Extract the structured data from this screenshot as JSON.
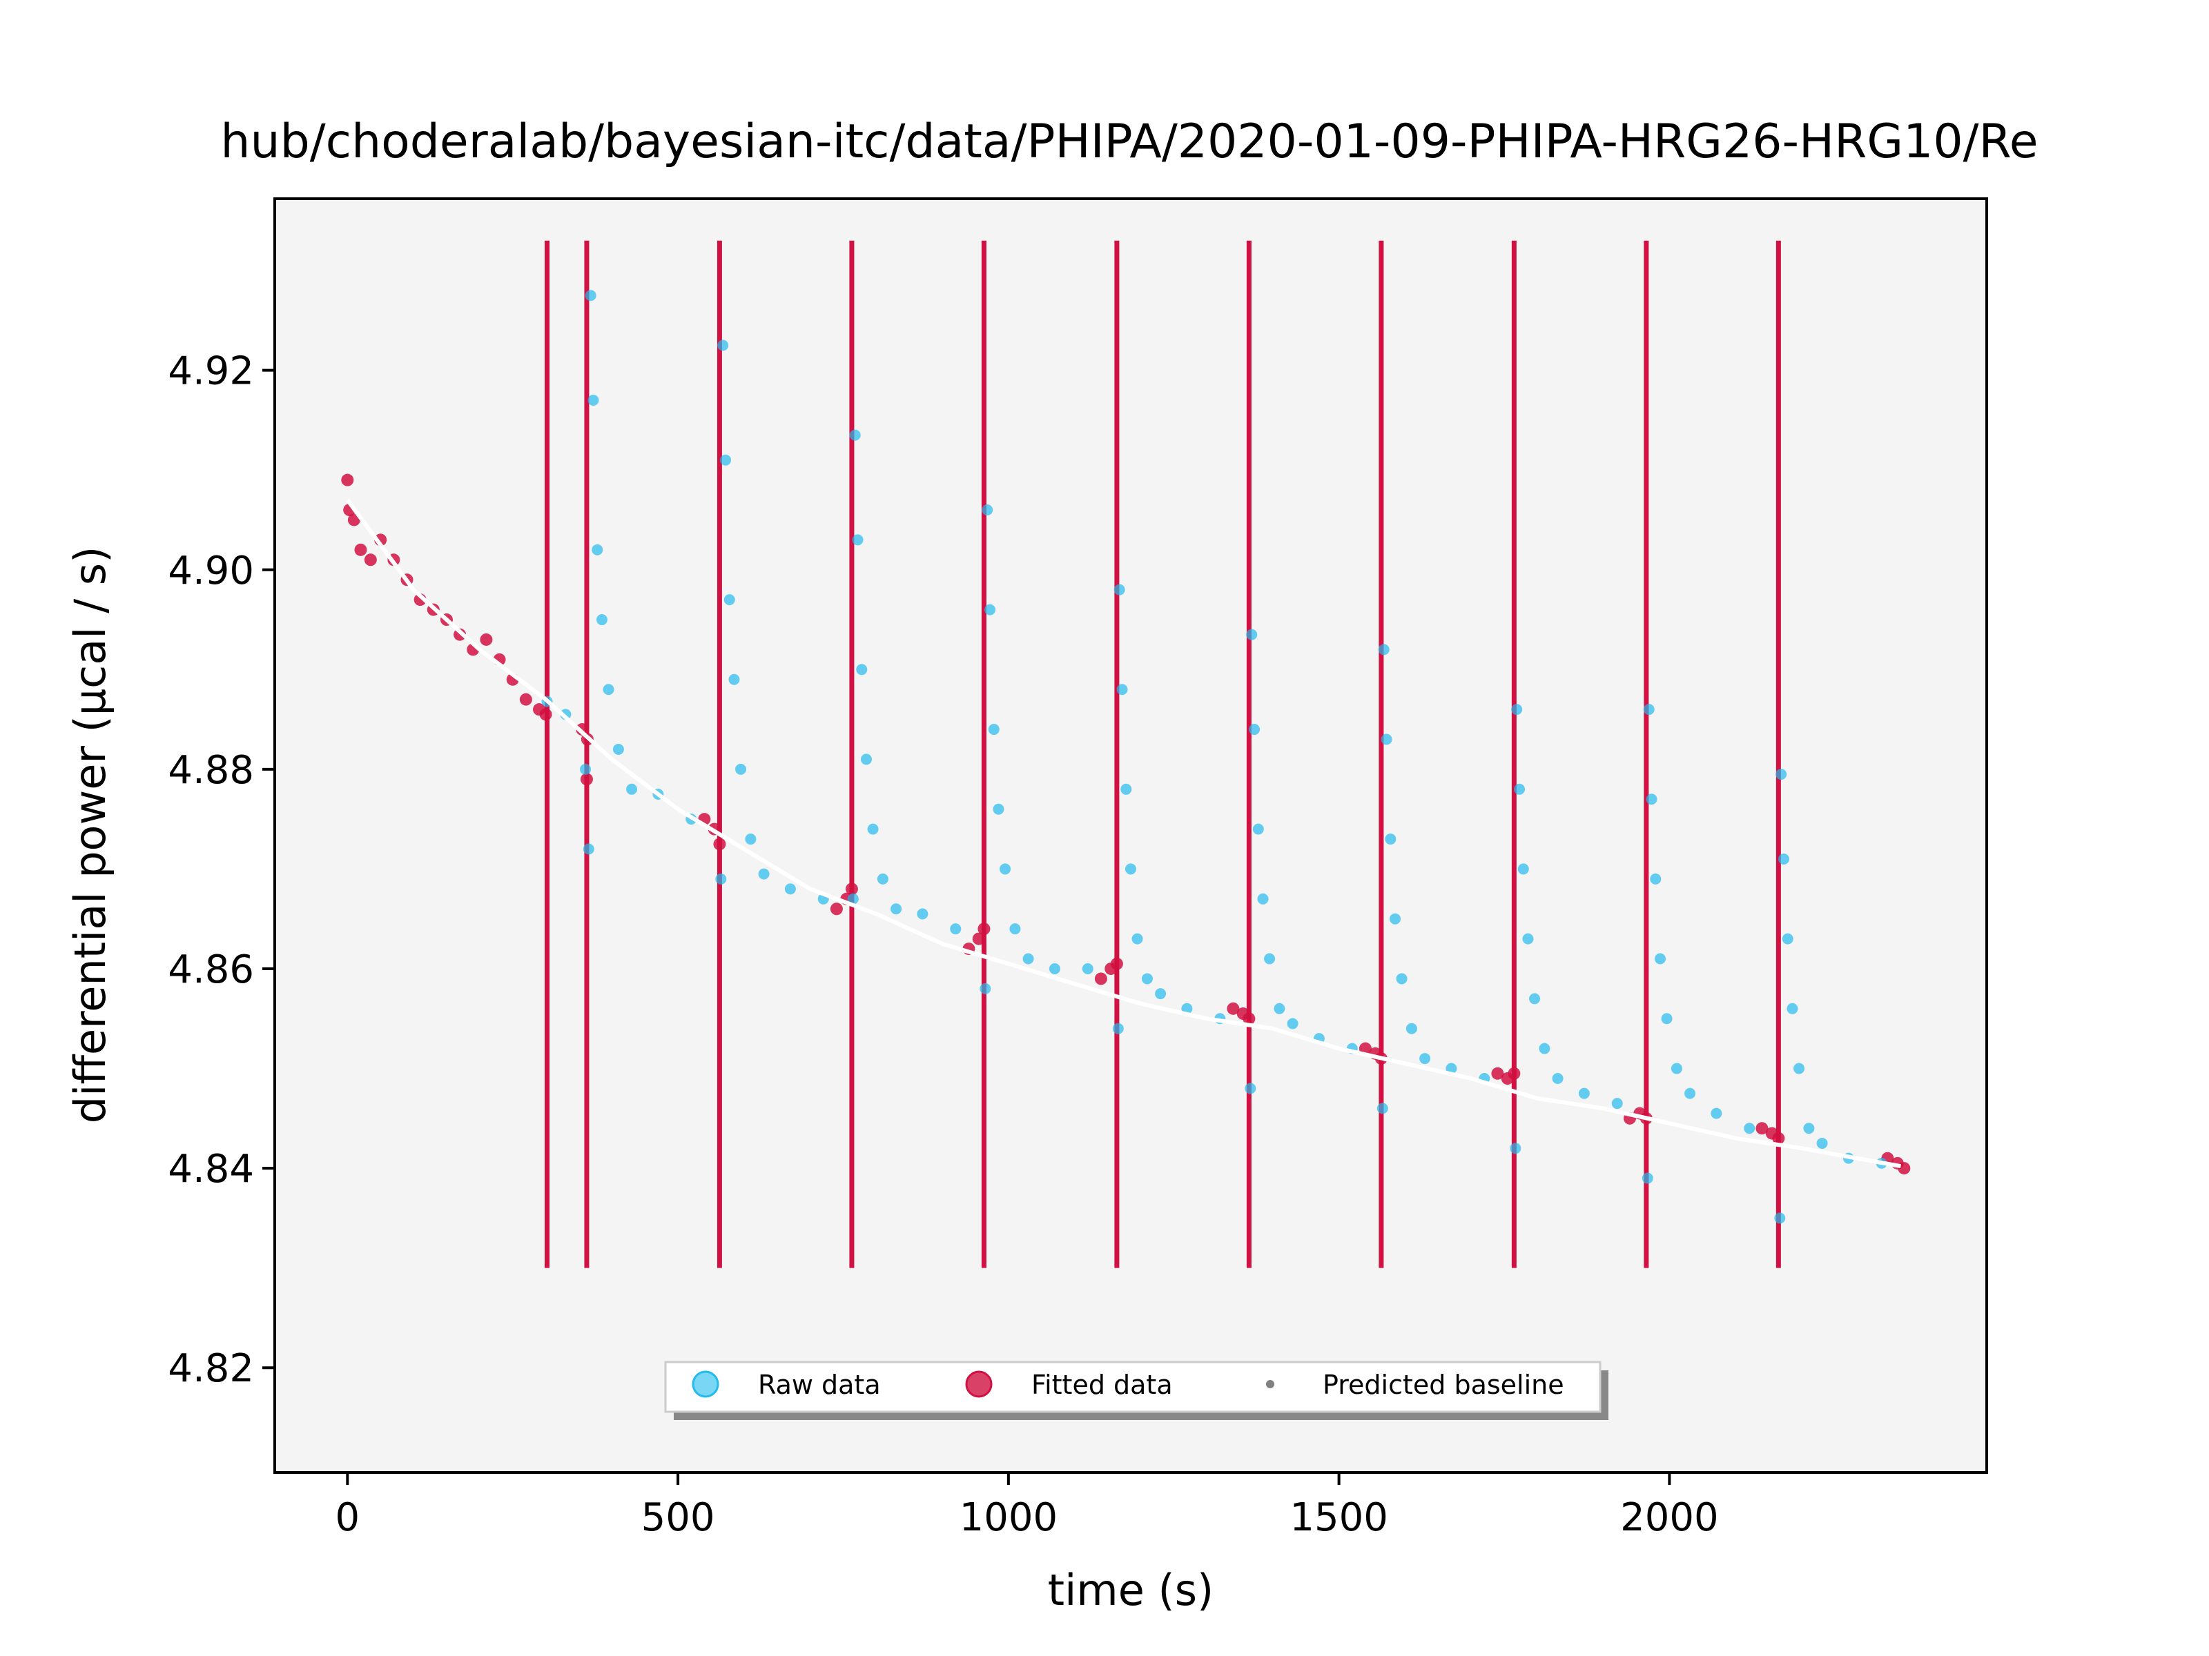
{
  "chart_data": {
    "type": "scatter",
    "title": "hub/choderalab/bayesian-itc/data/PHIPA/2020-01-09-PHIPA-HRG26-HRG10/Re",
    "xlabel": "time (s)",
    "ylabel": "differential power (μcal / s)",
    "xlim": [
      -110,
      2480
    ],
    "ylim": [
      4.8095,
      4.9372
    ],
    "xticks": [
      0,
      500,
      1000,
      1500,
      2000
    ],
    "yticks": [
      4.82,
      4.84,
      4.86,
      4.88,
      4.9,
      4.92
    ],
    "xtick_labels": [
      "0",
      "500",
      "1000",
      "1500",
      "2000"
    ],
    "ytick_labels": [
      "4.82",
      "4.84",
      "4.86",
      "4.88",
      "4.90",
      "4.92"
    ],
    "grid": false,
    "legend_position": "lower-center",
    "colors": {
      "raw": "#22bbee",
      "fitted": "#d11141",
      "baseline": "#ffffff",
      "injection_line": "#d11141",
      "plot_background": "#f4f4f4"
    },
    "injection_lines": {
      "x": [
        302,
        362,
        563,
        763,
        963,
        1164,
        1364,
        1564,
        1765,
        1965,
        2165
      ],
      "y_range": [
        4.83,
        4.933
      ]
    },
    "predicted_baseline": {
      "x": [
        0,
        100,
        200,
        300,
        400,
        500,
        600,
        700,
        800,
        900,
        1000,
        1100,
        1200,
        1300,
        1400,
        1500,
        1600,
        1700,
        1800,
        1900,
        2000,
        2100,
        2200,
        2300,
        2350
      ],
      "y": [
        4.907,
        4.898,
        4.892,
        4.887,
        4.881,
        4.876,
        4.872,
        4.868,
        4.8655,
        4.8625,
        4.8605,
        4.8585,
        4.8565,
        4.855,
        4.854,
        4.852,
        4.8505,
        4.849,
        4.847,
        4.846,
        4.8445,
        4.843,
        4.842,
        4.8408,
        4.8402
      ]
    },
    "series": [
      {
        "name": "Raw data",
        "x": [
          302,
          330,
          360,
          365,
          368,
          372,
          378,
          385,
          395,
          410,
          430,
          470,
          520,
          565,
          568,
          572,
          578,
          585,
          595,
          610,
          630,
          670,
          720,
          765,
          768,
          772,
          778,
          785,
          795,
          810,
          830,
          870,
          920,
          965,
          968,
          972,
          978,
          985,
          995,
          1010,
          1030,
          1070,
          1120,
          1166,
          1168,
          1172,
          1178,
          1185,
          1195,
          1210,
          1230,
          1270,
          1320,
          1366,
          1368,
          1372,
          1378,
          1385,
          1395,
          1410,
          1430,
          1470,
          1520,
          1566,
          1568,
          1572,
          1578,
          1585,
          1595,
          1610,
          1630,
          1670,
          1720,
          1767,
          1769,
          1773,
          1779,
          1786,
          1796,
          1811,
          1831,
          1871,
          1921,
          1967,
          1969,
          1973,
          1979,
          1986,
          1996,
          2011,
          2031,
          2071,
          2121,
          2167,
          2169,
          2173,
          2179,
          2186,
          2196,
          2211,
          2231,
          2271,
          2321
        ],
        "y": [
          4.8868,
          4.8855,
          4.88,
          4.872,
          4.9275,
          4.917,
          4.902,
          4.895,
          4.888,
          4.882,
          4.878,
          4.8775,
          4.875,
          4.869,
          4.9225,
          4.911,
          4.897,
          4.889,
          4.88,
          4.873,
          4.8695,
          4.868,
          4.867,
          4.867,
          4.9135,
          4.903,
          4.89,
          4.881,
          4.874,
          4.869,
          4.866,
          4.8655,
          4.864,
          4.858,
          4.906,
          4.896,
          4.884,
          4.876,
          4.87,
          4.864,
          4.861,
          4.86,
          4.86,
          4.854,
          4.898,
          4.888,
          4.878,
          4.87,
          4.863,
          4.859,
          4.8575,
          4.856,
          4.855,
          4.848,
          4.8935,
          4.884,
          4.874,
          4.867,
          4.861,
          4.856,
          4.8545,
          4.853,
          4.852,
          4.846,
          4.892,
          4.883,
          4.873,
          4.865,
          4.859,
          4.854,
          4.851,
          4.85,
          4.849,
          4.842,
          4.886,
          4.878,
          4.87,
          4.863,
          4.857,
          4.852,
          4.849,
          4.8475,
          4.8465,
          4.839,
          4.886,
          4.877,
          4.869,
          4.861,
          4.855,
          4.85,
          4.8475,
          4.8455,
          4.844,
          4.835,
          4.8795,
          4.871,
          4.863,
          4.856,
          4.85,
          4.844,
          4.8425,
          4.841,
          4.8405
        ]
      },
      {
        "name": "Fitted data",
        "x": [
          0,
          3,
          10,
          20,
          35,
          50,
          70,
          90,
          110,
          130,
          150,
          170,
          190,
          210,
          230,
          250,
          270,
          290,
          300,
          355,
          362,
          363,
          540,
          555,
          563,
          740,
          755,
          763,
          940,
          955,
          963,
          1140,
          1155,
          1164,
          1340,
          1355,
          1364,
          1540,
          1555,
          1564,
          1740,
          1755,
          1765,
          1940,
          1955,
          1965,
          2140,
          2155,
          2165,
          2330,
          2345,
          2355
        ],
        "y": [
          4.909,
          4.906,
          4.905,
          4.902,
          4.901,
          4.903,
          4.901,
          4.899,
          4.897,
          4.896,
          4.895,
          4.8935,
          4.892,
          4.893,
          4.891,
          4.889,
          4.887,
          4.886,
          4.8855,
          4.884,
          4.879,
          4.883,
          4.875,
          4.874,
          4.8725,
          4.866,
          4.867,
          4.868,
          4.862,
          4.863,
          4.864,
          4.859,
          4.86,
          4.8605,
          4.856,
          4.8555,
          4.855,
          4.852,
          4.8515,
          4.851,
          4.8495,
          4.849,
          4.8495,
          4.845,
          4.8455,
          4.845,
          4.844,
          4.8435,
          4.843,
          4.841,
          4.8405,
          4.84
        ]
      },
      {
        "name": "Predicted baseline"
      }
    ]
  }
}
